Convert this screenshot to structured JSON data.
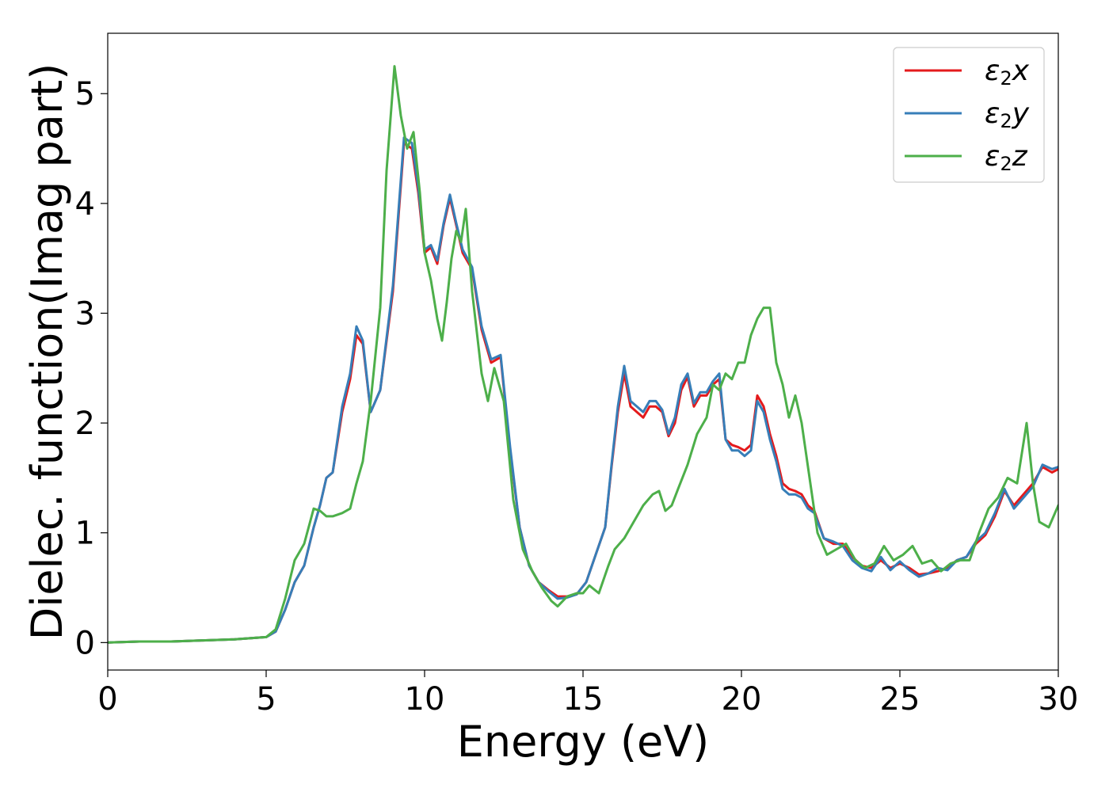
{
  "chart_data": {
    "type": "line",
    "title": "",
    "xlabel": "Energy (eV)",
    "ylabel": "Dielec. function(Imag part)",
    "xlim": [
      0,
      30
    ],
    "ylim": [
      -0.25,
      5.55
    ],
    "xticks": [
      0,
      5,
      10,
      15,
      20,
      25,
      30
    ],
    "yticks": [
      0,
      1,
      2,
      3,
      4,
      5
    ],
    "grid": false,
    "legend_position": "top-right",
    "series": [
      {
        "name": "ε2x",
        "legend_base": "ε",
        "legend_sub": "2",
        "legend_var": "x",
        "color": "#e41a1c",
        "x": [
          0,
          1,
          2,
          3,
          4,
          5,
          5.3,
          5.6,
          5.9,
          6.2,
          6.5,
          6.7,
          6.9,
          7.1,
          7.4,
          7.65,
          7.85,
          8.05,
          8.3,
          8.6,
          9.0,
          9.35,
          9.6,
          9.8,
          10.0,
          10.2,
          10.4,
          10.6,
          10.8,
          11.0,
          11.2,
          11.5,
          11.8,
          12.1,
          12.4,
          12.7,
          13.0,
          13.3,
          13.6,
          13.9,
          14.2,
          14.5,
          14.8,
          15.1,
          15.4,
          15.7,
          15.9,
          16.1,
          16.3,
          16.5,
          16.7,
          16.9,
          17.1,
          17.3,
          17.5,
          17.7,
          17.9,
          18.1,
          18.3,
          18.5,
          18.7,
          18.9,
          19.1,
          19.3,
          19.5,
          19.7,
          19.9,
          20.1,
          20.3,
          20.5,
          20.7,
          20.9,
          21.1,
          21.3,
          21.5,
          21.7,
          21.9,
          22.1,
          22.3,
          22.6,
          22.9,
          23.2,
          23.5,
          23.8,
          24.1,
          24.4,
          24.7,
          25.0,
          25.3,
          25.6,
          25.9,
          26.2,
          26.5,
          26.8,
          27.1,
          27.4,
          27.7,
          28.0,
          28.3,
          28.6,
          28.9,
          29.2,
          29.5,
          29.8,
          30.0
        ],
        "y": [
          0.0,
          0.01,
          0.01,
          0.02,
          0.03,
          0.05,
          0.1,
          0.3,
          0.55,
          0.7,
          1.05,
          1.25,
          1.5,
          1.55,
          2.1,
          2.4,
          2.8,
          2.72,
          2.1,
          2.3,
          3.2,
          4.55,
          4.5,
          4.1,
          3.55,
          3.6,
          3.45,
          3.8,
          4.05,
          3.8,
          3.55,
          3.4,
          2.85,
          2.55,
          2.6,
          1.75,
          1.05,
          0.7,
          0.55,
          0.48,
          0.42,
          0.42,
          0.44,
          0.55,
          0.8,
          1.05,
          1.6,
          2.1,
          2.45,
          2.15,
          2.1,
          2.05,
          2.15,
          2.15,
          2.1,
          1.88,
          2.0,
          2.3,
          2.42,
          2.15,
          2.25,
          2.25,
          2.35,
          2.4,
          1.85,
          1.8,
          1.78,
          1.75,
          1.8,
          2.25,
          2.15,
          1.9,
          1.7,
          1.45,
          1.4,
          1.38,
          1.35,
          1.25,
          1.2,
          0.95,
          0.9,
          0.9,
          0.78,
          0.7,
          0.68,
          0.75,
          0.68,
          0.72,
          0.68,
          0.62,
          0.63,
          0.65,
          0.68,
          0.75,
          0.78,
          0.9,
          0.98,
          1.15,
          1.38,
          1.25,
          1.35,
          1.45,
          1.6,
          1.55,
          1.58
        ]
      },
      {
        "name": "ε2y",
        "legend_base": "ε",
        "legend_sub": "2",
        "legend_var": "y",
        "color": "#377eb8",
        "x": [
          0,
          1,
          2,
          3,
          4,
          5,
          5.3,
          5.6,
          5.9,
          6.2,
          6.5,
          6.7,
          6.9,
          7.1,
          7.4,
          7.65,
          7.85,
          8.05,
          8.3,
          8.6,
          9.0,
          9.35,
          9.6,
          9.8,
          10.0,
          10.2,
          10.4,
          10.6,
          10.8,
          11.0,
          11.2,
          11.5,
          11.8,
          12.1,
          12.4,
          12.7,
          13.0,
          13.3,
          13.6,
          13.9,
          14.2,
          14.5,
          14.8,
          15.1,
          15.4,
          15.7,
          15.9,
          16.1,
          16.3,
          16.5,
          16.7,
          16.9,
          17.1,
          17.3,
          17.5,
          17.7,
          17.9,
          18.1,
          18.3,
          18.5,
          18.7,
          18.9,
          19.1,
          19.3,
          19.5,
          19.7,
          19.9,
          20.1,
          20.3,
          20.5,
          20.7,
          20.9,
          21.1,
          21.3,
          21.5,
          21.7,
          21.9,
          22.1,
          22.3,
          22.6,
          22.9,
          23.2,
          23.5,
          23.8,
          24.1,
          24.4,
          24.7,
          25.0,
          25.3,
          25.6,
          25.9,
          26.2,
          26.5,
          26.8,
          27.1,
          27.4,
          27.7,
          28.0,
          28.3,
          28.6,
          28.9,
          29.2,
          29.5,
          29.8,
          30.0
        ],
        "y": [
          0.0,
          0.01,
          0.01,
          0.02,
          0.03,
          0.05,
          0.1,
          0.3,
          0.55,
          0.7,
          1.05,
          1.25,
          1.5,
          1.55,
          2.15,
          2.45,
          2.88,
          2.75,
          2.1,
          2.3,
          3.25,
          4.6,
          4.55,
          4.15,
          3.58,
          3.62,
          3.48,
          3.82,
          4.08,
          3.82,
          3.58,
          3.42,
          2.88,
          2.58,
          2.62,
          1.78,
          1.05,
          0.7,
          0.55,
          0.47,
          0.4,
          0.41,
          0.44,
          0.55,
          0.8,
          1.05,
          1.62,
          2.15,
          2.52,
          2.2,
          2.15,
          2.1,
          2.2,
          2.2,
          2.12,
          1.9,
          2.05,
          2.35,
          2.45,
          2.18,
          2.28,
          2.28,
          2.38,
          2.45,
          1.85,
          1.75,
          1.75,
          1.7,
          1.75,
          2.2,
          2.1,
          1.85,
          1.65,
          1.4,
          1.35,
          1.35,
          1.32,
          1.22,
          1.18,
          0.95,
          0.92,
          0.88,
          0.75,
          0.68,
          0.65,
          0.78,
          0.66,
          0.74,
          0.66,
          0.6,
          0.63,
          0.68,
          0.66,
          0.75,
          0.78,
          0.92,
          1.0,
          1.18,
          1.4,
          1.22,
          1.32,
          1.42,
          1.62,
          1.58,
          1.6
        ]
      },
      {
        "name": "ε2z",
        "legend_base": "ε",
        "legend_sub": "2",
        "legend_var": "z",
        "color": "#4daf4a",
        "x": [
          0,
          1,
          2,
          3,
          4,
          5,
          5.3,
          5.6,
          5.9,
          6.2,
          6.5,
          6.7,
          6.9,
          7.1,
          7.4,
          7.65,
          7.85,
          8.05,
          8.3,
          8.6,
          8.8,
          9.05,
          9.25,
          9.45,
          9.65,
          9.85,
          10.0,
          10.2,
          10.4,
          10.55,
          10.7,
          10.85,
          11.0,
          11.15,
          11.3,
          11.5,
          11.8,
          12.0,
          12.2,
          12.5,
          12.8,
          13.1,
          13.4,
          13.7,
          14.0,
          14.2,
          14.5,
          14.8,
          15.0,
          15.2,
          15.5,
          15.8,
          16.0,
          16.3,
          16.6,
          16.9,
          17.2,
          17.4,
          17.6,
          17.8,
          18.0,
          18.3,
          18.6,
          18.9,
          19.1,
          19.3,
          19.5,
          19.7,
          19.9,
          20.1,
          20.3,
          20.5,
          20.7,
          20.9,
          21.1,
          21.3,
          21.5,
          21.7,
          21.9,
          22.1,
          22.4,
          22.7,
          23.0,
          23.3,
          23.6,
          23.9,
          24.2,
          24.5,
          24.8,
          25.1,
          25.4,
          25.7,
          26.0,
          26.3,
          26.6,
          26.9,
          27.2,
          27.5,
          27.8,
          28.1,
          28.4,
          28.7,
          29.0,
          29.2,
          29.4,
          29.7,
          30.0
        ],
        "y": [
          0.0,
          0.01,
          0.01,
          0.02,
          0.03,
          0.05,
          0.12,
          0.4,
          0.75,
          0.9,
          1.22,
          1.2,
          1.15,
          1.15,
          1.18,
          1.22,
          1.45,
          1.65,
          2.2,
          3.05,
          4.3,
          5.25,
          4.8,
          4.5,
          4.65,
          4.1,
          3.55,
          3.3,
          2.95,
          2.75,
          3.1,
          3.5,
          3.75,
          3.65,
          3.95,
          3.2,
          2.45,
          2.2,
          2.5,
          2.2,
          1.3,
          0.85,
          0.65,
          0.5,
          0.38,
          0.33,
          0.42,
          0.45,
          0.45,
          0.52,
          0.45,
          0.7,
          0.85,
          0.95,
          1.1,
          1.25,
          1.35,
          1.38,
          1.2,
          1.25,
          1.4,
          1.62,
          1.9,
          2.05,
          2.35,
          2.3,
          2.45,
          2.4,
          2.55,
          2.55,
          2.8,
          2.95,
          3.05,
          3.05,
          2.55,
          2.35,
          2.05,
          2.25,
          2.0,
          1.6,
          1.0,
          0.8,
          0.85,
          0.9,
          0.75,
          0.68,
          0.72,
          0.88,
          0.75,
          0.8,
          0.88,
          0.72,
          0.75,
          0.65,
          0.72,
          0.75,
          0.75,
          1.0,
          1.22,
          1.32,
          1.5,
          1.45,
          2.0,
          1.45,
          1.1,
          1.05,
          1.25
        ]
      }
    ]
  }
}
